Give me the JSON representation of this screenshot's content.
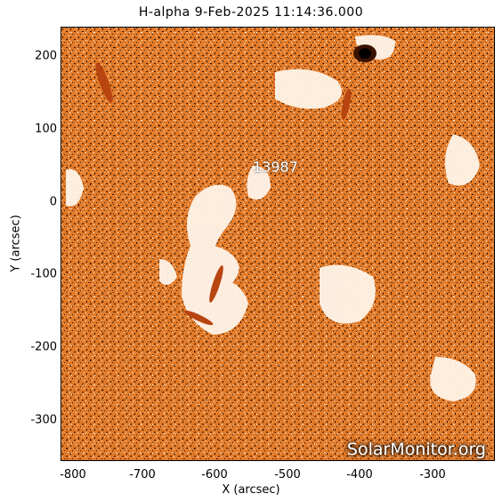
{
  "title": "H-alpha  9-Feb-2025 11:14:36.000",
  "x_axis": {
    "label": "X (arcsec)",
    "ticks": [
      "-800",
      "-700",
      "-600",
      "-500",
      "-400",
      "-300"
    ]
  },
  "y_axis": {
    "label": "Y (arcsec)",
    "ticks": [
      "200",
      "100",
      "0",
      "-100",
      "-200",
      "-300"
    ]
  },
  "region_label": "13987",
  "watermark": "SolarMonitor.org",
  "colors": {
    "base": "#e07a2a",
    "light": "#fff4e8",
    "dark": "#3a1300",
    "filament": "#b84410"
  }
}
